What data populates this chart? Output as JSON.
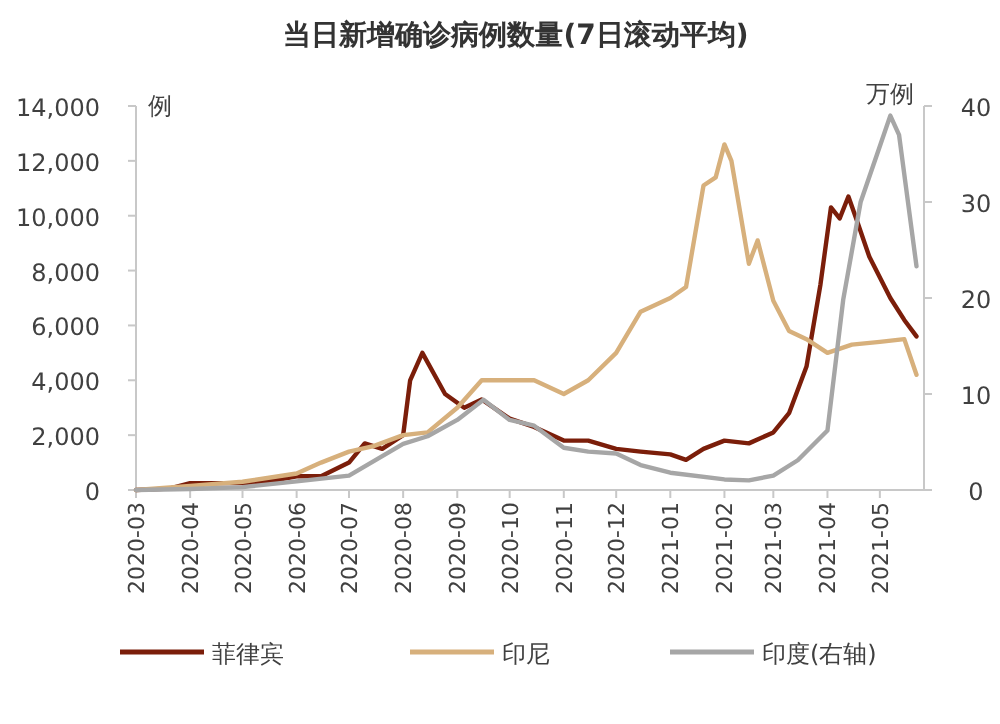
{
  "chart_data": {
    "type": "line",
    "title": "当日新增确诊病例数量(7日滚动平均)",
    "ylabel": "例",
    "y2label": "万例",
    "xlim": [
      "2020-03-01",
      "2021-05-24"
    ],
    "xticks": [
      "2020-03",
      "2020-04",
      "2020-05",
      "2020-06",
      "2020-07",
      "2020-08",
      "2020-09",
      "2020-10",
      "2020-11",
      "2020-12",
      "2021-01",
      "2021-02",
      "2021-03",
      "2021-04",
      "2021-05"
    ],
    "ylim": [
      0,
      14000
    ],
    "yticks": [
      0,
      {
        "value": 2000,
        "label": "2,000"
      },
      {
        "value": 4000,
        "label": "4,000"
      },
      {
        "value": 6000,
        "label": "6,000"
      },
      {
        "value": 8000,
        "label": "8,000"
      },
      {
        "value": 10000,
        "label": "10,000"
      },
      {
        "value": 12000,
        "label": "12,000"
      },
      {
        "value": 14000,
        "label": "14,000"
      }
    ],
    "y2lim": [
      0,
      40
    ],
    "y2ticks": [
      0,
      10,
      20,
      30,
      40
    ],
    "grid": false,
    "legend": "bottom",
    "series": [
      {
        "name": "菲律宾",
        "color": "#7b1e0a",
        "x": [
          "2020-03-01",
          "2020-03-20",
          "2020-04-01",
          "2020-04-15",
          "2020-05-01",
          "2020-05-15",
          "2020-06-01",
          "2020-06-15",
          "2020-07-01",
          "2020-07-10",
          "2020-07-20",
          "2020-08-01",
          "2020-08-05",
          "2020-08-12",
          "2020-08-25",
          "2020-09-05",
          "2020-09-15",
          "2020-10-01",
          "2020-10-15",
          "2020-11-01",
          "2020-11-15",
          "2020-12-01",
          "2020-12-15",
          "2021-01-01",
          "2021-01-10",
          "2021-01-20",
          "2021-02-01",
          "2021-02-15",
          "2021-03-01",
          "2021-03-10",
          "2021-03-20",
          "2021-03-28",
          "2021-04-03",
          "2021-04-08",
          "2021-04-13",
          "2021-04-18",
          "2021-04-25",
          "2021-05-07",
          "2021-05-15",
          "2021-05-22"
        ],
        "values": [
          0,
          50,
          250,
          250,
          250,
          300,
          500,
          500,
          1000,
          1700,
          1500,
          2000,
          4000,
          5000,
          3500,
          3000,
          3300,
          2600,
          2300,
          1800,
          1800,
          1500,
          1400,
          1300,
          1100,
          1500,
          1800,
          1700,
          2100,
          2800,
          4500,
          7500,
          10300,
          9900,
          10700,
          9800,
          8500,
          7000,
          6200,
          5600
        ]
      },
      {
        "name": "印尼",
        "color": "#d7b07c",
        "x": [
          "2020-03-01",
          "2020-04-01",
          "2020-05-01",
          "2020-06-01",
          "2020-06-15",
          "2020-07-01",
          "2020-07-15",
          "2020-08-01",
          "2020-08-15",
          "2020-09-01",
          "2020-09-15",
          "2020-10-01",
          "2020-10-15",
          "2020-11-01",
          "2020-11-15",
          "2020-12-01",
          "2020-12-15",
          "2021-01-01",
          "2021-01-10",
          "2021-01-20",
          "2021-01-27",
          "2021-02-01",
          "2021-02-05",
          "2021-02-15",
          "2021-02-20",
          "2021-03-01",
          "2021-03-10",
          "2021-03-20",
          "2021-04-01",
          "2021-04-15",
          "2021-05-01",
          "2021-05-15",
          "2021-05-22"
        ],
        "values": [
          0,
          150,
          300,
          600,
          1000,
          1400,
          1600,
          2000,
          2100,
          3000,
          4000,
          4000,
          4000,
          3500,
          4000,
          5000,
          6500,
          7000,
          7400,
          11100,
          11400,
          12600,
          12000,
          8250,
          9100,
          6900,
          5800,
          5500,
          5000,
          5300,
          5400,
          5500,
          4200
        ]
      },
      {
        "name": "印度(右轴)",
        "color": "#a6a6a6",
        "axis": "y2",
        "x": [
          "2020-03-01",
          "2020-04-01",
          "2020-05-01",
          "2020-06-01",
          "2020-07-01",
          "2020-08-01",
          "2020-08-15",
          "2020-09-01",
          "2020-09-16",
          "2020-10-01",
          "2020-10-15",
          "2020-11-01",
          "2020-11-15",
          "2020-12-01",
          "2020-12-15",
          "2021-01-01",
          "2021-02-01",
          "2021-02-15",
          "2021-03-01",
          "2021-03-15",
          "2021-04-01",
          "2021-04-10",
          "2021-04-20",
          "2021-05-01",
          "2021-05-07",
          "2021-05-12",
          "2021-05-22"
        ],
        "values": [
          0,
          0.1,
          0.3,
          0.9,
          1.5,
          4.8,
          5.6,
          7.3,
          9.4,
          7.3,
          6.7,
          4.4,
          4.0,
          3.8,
          2.6,
          1.8,
          1.1,
          1.0,
          1.5,
          3.1,
          6.2,
          19.8,
          30,
          35.8,
          39,
          37,
          23.3
        ]
      }
    ]
  }
}
